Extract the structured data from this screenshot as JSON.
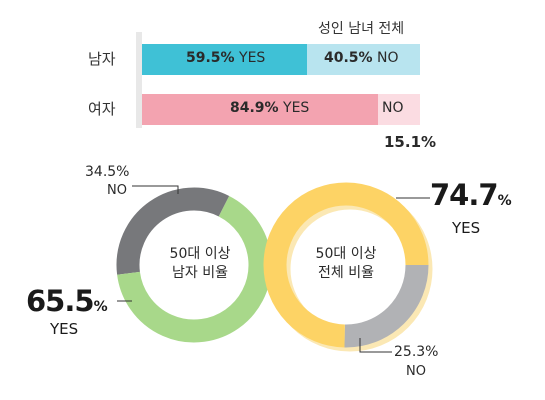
{
  "bars": {
    "title": "성인 남녀 전체",
    "rows": [
      {
        "label": "남자",
        "yes_value": 59.5,
        "yes_pct": "59.5",
        "yes_label": "YES",
        "no_value": 40.5,
        "no_pct": "40.5",
        "no_label": "NO",
        "yes_color": "#3fc1d6",
        "no_color": "#b8e4ef"
      },
      {
        "label": "여자",
        "yes_value": 84.9,
        "yes_pct": "84.9",
        "yes_label": "YES",
        "no_value": 15.1,
        "no_pct": "15.1",
        "no_label": "NO",
        "yes_color": "#f3a3b0",
        "no_color": "#fbdce2"
      }
    ],
    "axis_color": "#e8e8e8"
  },
  "donut_men": {
    "center_line1": "50대 이상",
    "center_line2": "남자 비율",
    "yes_value": 65.5,
    "yes_pct": "65.5",
    "yes_label": "YES",
    "no_value": 34.5,
    "no_pct": "34.5",
    "no_label": "NO",
    "yes_color": "#a8d88a",
    "no_color": "#77787b"
  },
  "donut_all": {
    "center_line1": "50대 이상",
    "center_line2": "전체 비율",
    "yes_value": 74.7,
    "yes_pct": "74.7",
    "yes_label": "YES",
    "no_value": 25.3,
    "no_pct": "25.3",
    "no_label": "NO",
    "yes_color": "#fdd365",
    "no_color": "#b1b2b5",
    "shadow_color": "#fbe8b4"
  },
  "pct_sign": "%",
  "chart_data": [
    {
      "type": "bar",
      "title": "성인 남녀 전체",
      "categories": [
        "남자",
        "여자"
      ],
      "series": [
        {
          "name": "YES",
          "values": [
            59.5,
            84.9
          ]
        },
        {
          "name": "NO",
          "values": [
            40.5,
            15.1
          ]
        }
      ]
    },
    {
      "type": "pie",
      "labels": [
        "YES",
        "NO"
      ],
      "values": [
        65.5,
        34.5
      ]
    },
    {
      "type": "pie",
      "labels": [
        "YES",
        "NO"
      ],
      "values": [
        74.7,
        25.3
      ]
    }
  ]
}
